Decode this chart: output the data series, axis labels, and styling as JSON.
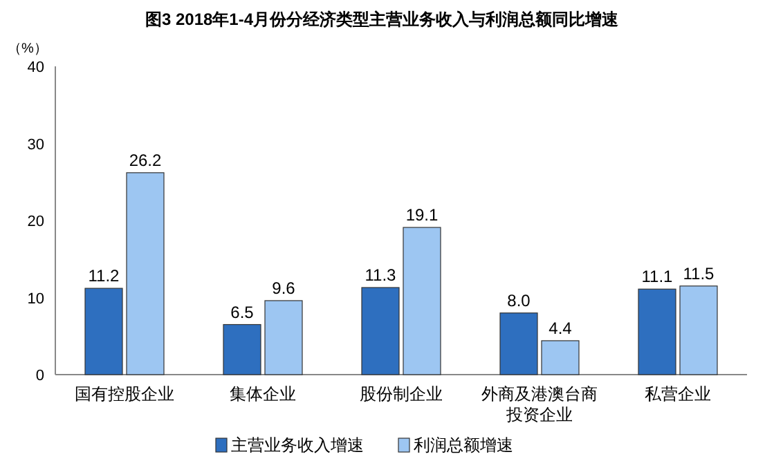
{
  "chart_data": {
    "type": "bar",
    "title": "图3 2018年1-4月份分经济类型主营业务收入与利润总额同比增速",
    "ylabel": "（%）",
    "categories": [
      "国有控股企业",
      "集体企业",
      "股份制企业",
      "外商及港澳台商投资企业",
      "私营企业"
    ],
    "series": [
      {
        "name": "主营业务收入增速",
        "color": "#2e6fbf",
        "values": [
          11.2,
          6.5,
          11.3,
          8.0,
          11.1
        ],
        "value_labels": [
          "11.2",
          "6.5",
          "11.3",
          "8.0",
          "11.1"
        ]
      },
      {
        "name": "利润总额增速",
        "color": "#9dc6f2",
        "values": [
          26.2,
          9.6,
          19.1,
          4.4,
          11.5
        ],
        "value_labels": [
          "26.2",
          "9.6",
          "19.1",
          "4.4",
          "11.5"
        ]
      }
    ],
    "ylim": [
      0,
      40
    ],
    "yticks": [
      0,
      10,
      20,
      30,
      40
    ],
    "grid": false,
    "legend": "bottom"
  }
}
